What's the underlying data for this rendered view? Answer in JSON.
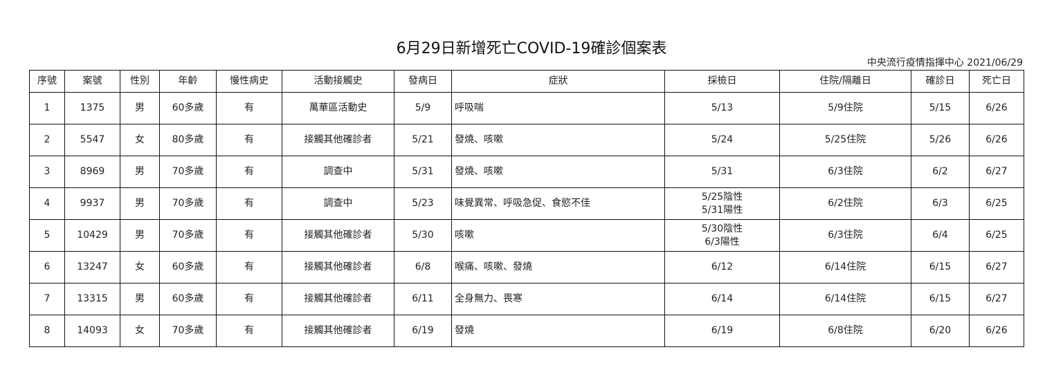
{
  "title": "6月29日新增死亡COVID-19確診個案表",
  "source": "中央流行疫情指揮中心 2021/06/29",
  "headers": [
    "序號",
    "案號",
    "性別",
    "年齡",
    "慢性病史",
    "活動接觸史",
    "發病日",
    "症狀",
    "採檢日",
    "住院/隔離日",
    "確診日",
    "死亡日"
  ],
  "rows": [
    [
      "1",
      "1375",
      "男",
      "60多歲",
      "有",
      "萬華區活動史",
      "5/9",
      "呼吸喘",
      "5/13",
      "5/9住院",
      "5/15",
      "6/26"
    ],
    [
      "2",
      "5547",
      "女",
      "80多歲",
      "有",
      "接觸其他確診者",
      "5/21",
      "發燒、咳嗽",
      "5/24",
      "5/25住院",
      "5/26",
      "6/26"
    ],
    [
      "3",
      "8969",
      "男",
      "70多歲",
      "有",
      "調查中",
      "5/31",
      "發燒、咳嗽",
      "5/31",
      "6/3住院",
      "6/2",
      "6/27"
    ],
    [
      "4",
      "9937",
      "男",
      "70多歲",
      "有",
      "調查中",
      "5/23",
      "味覺異常、呼吸急促、食慾不佳",
      "5/25陰性\n5/31陽性",
      "6/2住院",
      "6/3",
      "6/25"
    ],
    [
      "5",
      "10429",
      "男",
      "70多歲",
      "有",
      "接觸其他確診者",
      "5/30",
      "咳嗽",
      "5/30陰性\n6/3陽性",
      "6/3住院",
      "6/4",
      "6/25"
    ],
    [
      "6",
      "13247",
      "女",
      "60多歲",
      "有",
      "接觸其他確診者",
      "6/8",
      "喉痛、咳嗽、發燒",
      "6/12",
      "6/14住院",
      "6/15",
      "6/27"
    ],
    [
      "7",
      "13315",
      "男",
      "60多歲",
      "有",
      "接觸其他確診者",
      "6/11",
      "全身無力、畏寒",
      "6/14",
      "6/14住院",
      "6/15",
      "6/27"
    ],
    [
      "8",
      "14093",
      "女",
      "70多歲",
      "有",
      "接觸其他確診者",
      "6/19",
      "發燒",
      "6/19",
      "6/8住院",
      "6/20",
      "6/26"
    ]
  ]
}
